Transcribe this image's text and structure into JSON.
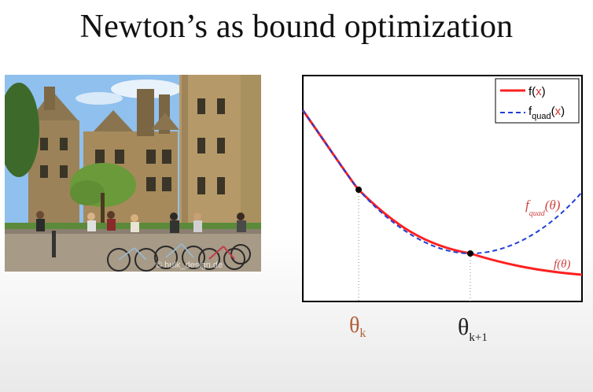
{
  "slide": {
    "title": "Newton’s as bound optimization"
  },
  "photo": {
    "credit": "© hulk_design.de"
  },
  "legend": {
    "entries": [
      {
        "label_main": "f(",
        "label_var": "x",
        "label_close": ")",
        "color": "#ff2020",
        "style": "solid"
      },
      {
        "label_main": "f",
        "label_sub": "quad",
        "label_var": "x",
        "label_close": ")",
        "color": "#1f3fd8",
        "style": "dashed"
      }
    ]
  },
  "chart_data": {
    "type": "line",
    "series": [
      {
        "name": "f(x)",
        "color": "#ff2020",
        "style": "solid"
      },
      {
        "name": "f_quad(x)",
        "color": "#1f3fd8",
        "style": "dashed"
      }
    ],
    "points": [
      {
        "label": "θk"
      },
      {
        "label": "θk+1"
      }
    ],
    "annotations": {
      "f_theta": "f(θ)",
      "fquad_theta_main": "f",
      "fquad_theta_sub": "quad",
      "fquad_theta_arg": "(θ)",
      "theta_k": "θ",
      "theta_k_sub": "k",
      "theta_k1": "θ",
      "theta_k1_sub": "k+1"
    }
  }
}
